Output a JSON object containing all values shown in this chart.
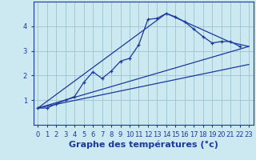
{
  "background_color": "#cce8f0",
  "grid_color": "#9dc4d0",
  "line_color": "#1a3a9e",
  "xlabel": "Graphe des températures (°c)",
  "xlabel_fontsize": 8,
  "tick_fontsize": 6,
  "xlim": [
    -0.5,
    23.5
  ],
  "ylim": [
    0.0,
    5.0
  ],
  "xticks": [
    0,
    1,
    2,
    3,
    4,
    5,
    6,
    7,
    8,
    9,
    10,
    11,
    12,
    13,
    14,
    15,
    16,
    17,
    18,
    19,
    20,
    21,
    22,
    23
  ],
  "yticks": [
    1,
    2,
    3,
    4
  ],
  "series1_x": [
    0,
    1,
    2,
    3,
    4,
    5,
    6,
    7,
    8,
    9,
    10,
    11,
    12,
    13,
    14,
    15,
    16,
    17,
    18,
    19,
    20,
    21,
    22
  ],
  "series1_y": [
    0.68,
    0.68,
    0.85,
    1.0,
    1.15,
    1.72,
    2.15,
    1.88,
    2.18,
    2.58,
    2.7,
    3.25,
    4.28,
    4.32,
    4.52,
    4.38,
    4.18,
    3.88,
    3.58,
    3.32,
    3.38,
    3.38,
    3.18
  ],
  "series2_x": [
    0,
    23
  ],
  "series2_y": [
    0.68,
    2.45
  ],
  "series3_x": [
    0,
    23
  ],
  "series3_y": [
    0.68,
    3.18
  ],
  "series4_x": [
    0,
    14,
    21,
    23
  ],
  "series4_y": [
    0.68,
    4.52,
    3.35,
    3.18
  ]
}
